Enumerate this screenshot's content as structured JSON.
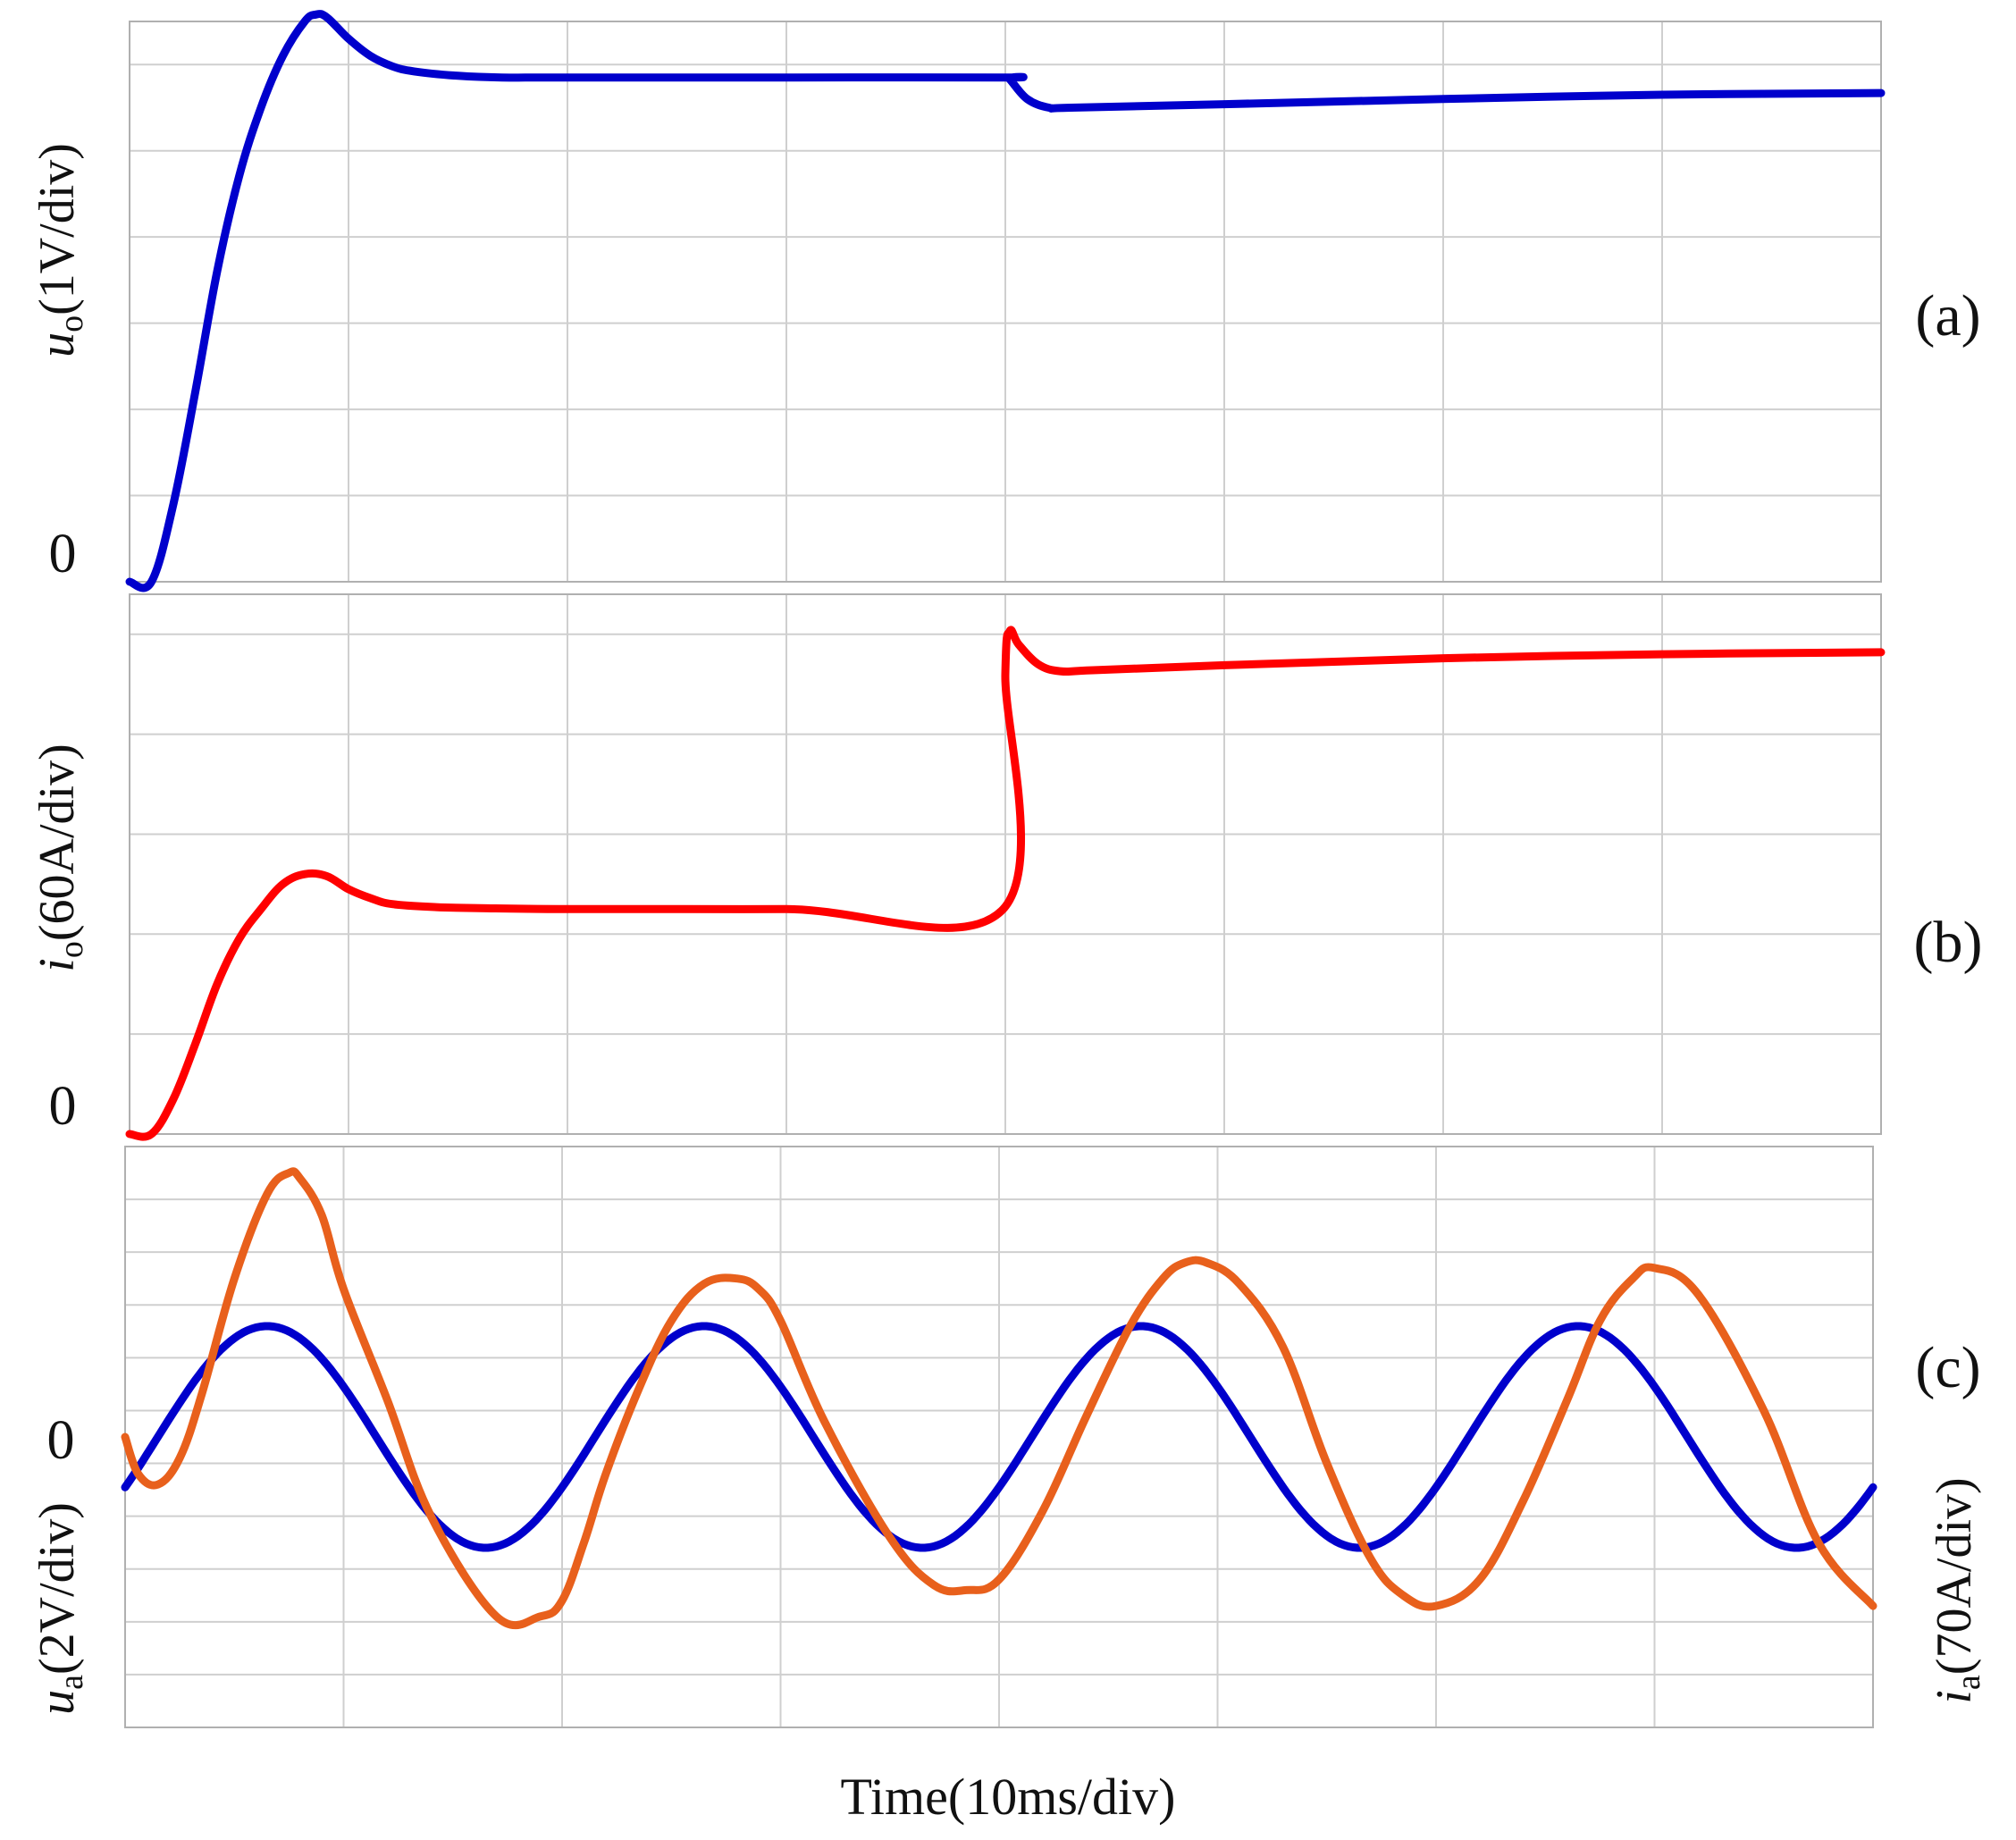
{
  "chart_data": [
    {
      "panel": "(a)",
      "type": "line",
      "ylabel": {
        "main": "u",
        "sub": "o",
        "unit": "(1V/div)"
      },
      "zero_label": "0",
      "x_divisions": 8,
      "y_divisions": 6.5,
      "xlim": [
        0,
        8
      ],
      "ylim": [
        0,
        6.5
      ],
      "grid": true,
      "series": [
        {
          "color": "#0000cc",
          "x": [
            0,
            0.1,
            0.2,
            0.3,
            0.4,
            0.5,
            0.6,
            0.7,
            0.8,
            0.85,
            0.9,
            1.0,
            1.1,
            1.2,
            1.3,
            1.5,
            1.7,
            2.0,
            3.0,
            4.0,
            4.02,
            4.1,
            4.2,
            4.3,
            5.0,
            6.0,
            7.0,
            8.0
          ],
          "y": [
            0,
            0,
            0.9,
            2.2,
            3.6,
            4.7,
            5.5,
            6.1,
            6.5,
            6.58,
            6.55,
            6.3,
            6.1,
            5.98,
            5.92,
            5.87,
            5.85,
            5.85,
            5.85,
            5.85,
            5.83,
            5.6,
            5.5,
            5.5,
            5.54,
            5.6,
            5.65,
            5.67
          ]
        }
      ]
    },
    {
      "panel": "(b)",
      "type": "line",
      "ylabel": {
        "main": "i",
        "sub": "o",
        "unit": "(60A/div)"
      },
      "zero_label": "0",
      "x_divisions": 8,
      "y_divisions": 5.4,
      "xlim": [
        0,
        8
      ],
      "ylim": [
        0,
        5.4
      ],
      "grid": true,
      "series": [
        {
          "color": "#ff0000",
          "x": [
            0,
            0.1,
            0.2,
            0.3,
            0.4,
            0.5,
            0.6,
            0.7,
            0.8,
            0.9,
            1.0,
            1.1,
            1.2,
            1.4,
            1.6,
            2.0,
            3.0,
            3.99,
            4.0,
            4.02,
            4.06,
            4.15,
            4.25,
            4.4,
            5.0,
            6.0,
            7.0,
            8.0
          ],
          "y": [
            0,
            0,
            0.35,
            0.9,
            1.5,
            1.95,
            2.25,
            2.5,
            2.6,
            2.58,
            2.45,
            2.36,
            2.3,
            2.27,
            2.26,
            2.25,
            2.25,
            2.25,
            4.6,
            5.03,
            4.9,
            4.7,
            4.63,
            4.64,
            4.69,
            4.76,
            4.8,
            4.82
          ]
        }
      ]
    },
    {
      "panel": "(c)",
      "type": "line",
      "ylabel_left": {
        "main": "u",
        "sub": "a",
        "unit": "(2V/div)"
      },
      "ylabel_right": {
        "main": "i",
        "sub": "a",
        "unit": "(70A/div)"
      },
      "zero_label": "0",
      "x_divisions": 8,
      "y_divisions": 11,
      "xlim": [
        0,
        8
      ],
      "ylim": [
        -5.5,
        5.5
      ],
      "grid": true,
      "series": [
        {
          "color": "#0000cc",
          "function": "sine",
          "amplitude": 2.1,
          "offset": 0,
          "period": 2.0,
          "peak_x": 0.65,
          "x_end": 8.0
        },
        {
          "color": "#e8601c",
          "x": [
            0,
            0.06,
            0.15,
            0.25,
            0.35,
            0.5,
            0.65,
            0.75,
            0.8,
            0.9,
            1.0,
            1.2,
            1.4,
            1.7,
            1.9,
            2.0,
            2.1,
            2.2,
            2.35,
            2.5,
            2.65,
            2.8,
            2.9,
            3.0,
            3.2,
            3.5,
            3.7,
            3.85,
            4.0,
            4.2,
            4.4,
            4.6,
            4.75,
            4.85,
            4.95,
            5.1,
            5.3,
            5.5,
            5.7,
            5.85,
            6.0,
            6.2,
            6.4,
            6.6,
            6.75,
            6.9,
            7.0,
            7.2,
            7.5,
            7.75,
            8.0
          ],
          "y": [
            0,
            -0.7,
            -0.9,
            -0.4,
            0.8,
            3.0,
            4.6,
            5.0,
            4.9,
            4.2,
            2.8,
            0.7,
            -1.5,
            -3.4,
            -3.4,
            -3.1,
            -2.0,
            -0.7,
            0.9,
            2.2,
            2.9,
            3.0,
            2.8,
            2.2,
            0.3,
            -1.9,
            -2.8,
            -2.9,
            -2.7,
            -1.4,
            0.4,
            2.1,
            3.0,
            3.3,
            3.3,
            2.9,
            1.7,
            -0.5,
            -2.3,
            -3.0,
            -3.2,
            -2.7,
            -1.2,
            0.7,
            2.2,
            3.0,
            3.2,
            2.7,
            0.5,
            -2.0,
            -3.2
          ]
        }
      ]
    }
  ],
  "panel_labels": [
    "(a)",
    "(b)",
    "(c)"
  ],
  "xlabel": "Time(10ms/div)"
}
